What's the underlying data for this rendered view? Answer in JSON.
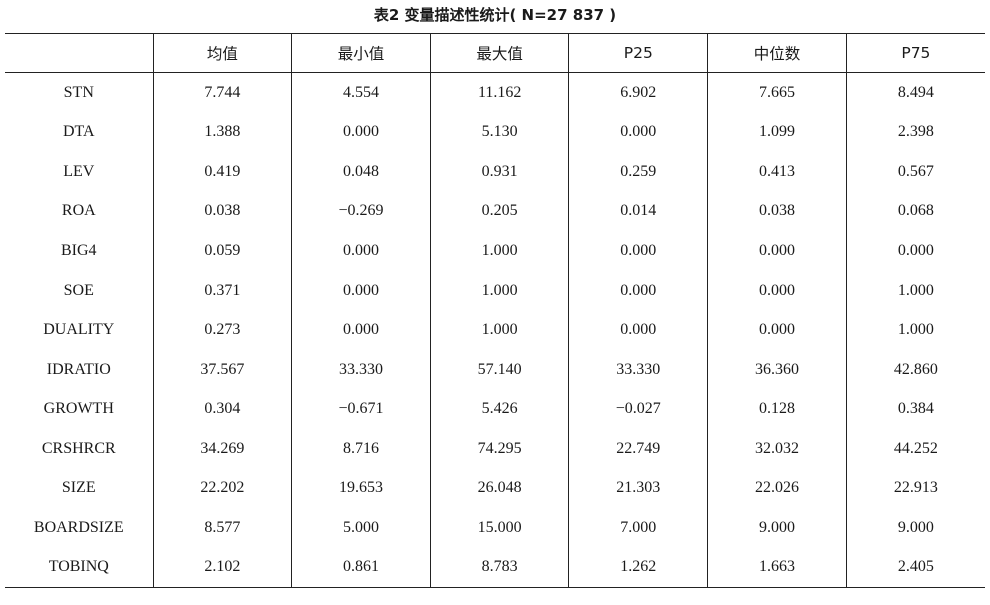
{
  "caption": "表2  变量描述性统计( N=27 837 )",
  "table": {
    "headers": [
      "",
      "均值",
      "最小值",
      "最大值",
      "P25",
      "中位数",
      "P75"
    ],
    "rows": [
      [
        "STN",
        "7.744",
        "4.554",
        "11.162",
        "6.902",
        "7.665",
        "8.494"
      ],
      [
        "DTA",
        "1.388",
        "0.000",
        "5.130",
        "0.000",
        "1.099",
        "2.398"
      ],
      [
        "LEV",
        "0.419",
        "0.048",
        "0.931",
        "0.259",
        "0.413",
        "0.567"
      ],
      [
        "ROA",
        "0.038",
        "−0.269",
        "0.205",
        "0.014",
        "0.038",
        "0.068"
      ],
      [
        "BIG4",
        "0.059",
        "0.000",
        "1.000",
        "0.000",
        "0.000",
        "0.000"
      ],
      [
        "SOE",
        "0.371",
        "0.000",
        "1.000",
        "0.000",
        "0.000",
        "1.000"
      ],
      [
        "DUALITY",
        "0.273",
        "0.000",
        "1.000",
        "0.000",
        "0.000",
        "1.000"
      ],
      [
        "IDRATIO",
        "37.567",
        "33.330",
        "57.140",
        "33.330",
        "36.360",
        "42.860"
      ],
      [
        "GROWTH",
        "0.304",
        "−0.671",
        "5.426",
        "−0.027",
        "0.128",
        "0.384"
      ],
      [
        "CRSHRCR",
        "34.269",
        "8.716",
        "74.295",
        "22.749",
        "32.032",
        "44.252"
      ],
      [
        "SIZE",
        "22.202",
        "19.653",
        "26.048",
        "21.303",
        "22.026",
        "22.913"
      ],
      [
        "BOARDSIZE",
        "8.577",
        "5.000",
        "15.000",
        "7.000",
        "9.000",
        "9.000"
      ],
      [
        "TOBINQ",
        "2.102",
        "0.861",
        "8.783",
        "1.262",
        "1.663",
        "2.405"
      ]
    ]
  }
}
